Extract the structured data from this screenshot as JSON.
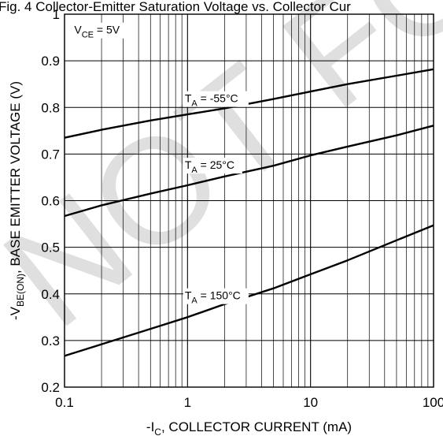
{
  "page": {
    "partial_title": "Fig. 4 Collector-Emitter Saturation Voltage vs. Collector Cur",
    "watermark": "NOT FOR"
  },
  "chart_data": {
    "type": "line",
    "title": "",
    "xlabel": {
      "prefix": "-I",
      "sub": "C",
      "rest": ", COLLECTOR CURRENT (mA)"
    },
    "ylabel": {
      "prefix": "-V",
      "sub": "BE(ON)",
      "rest": ", BASE EMITTER VOLTAGE (V)"
    },
    "x_scale": "log",
    "xlim": [
      0.1,
      100
    ],
    "ylim": [
      0.2,
      1.0
    ],
    "x_ticks": [
      {
        "value": 0.1,
        "label": "0.1"
      },
      {
        "value": 1,
        "label": "1"
      },
      {
        "value": 10,
        "label": "10"
      },
      {
        "value": 100,
        "label": "100"
      }
    ],
    "y_ticks": [
      {
        "value": 0.2,
        "label": "0.2"
      },
      {
        "value": 0.3,
        "label": "0.3"
      },
      {
        "value": 0.4,
        "label": "0.4"
      },
      {
        "value": 0.5,
        "label": "0.5"
      },
      {
        "value": 0.6,
        "label": "0.6"
      },
      {
        "value": 0.7,
        "label": "0.7"
      },
      {
        "value": 0.8,
        "label": "0.8"
      },
      {
        "value": 0.9,
        "label": "0.9"
      },
      {
        "value": 1.0,
        "label": "1"
      }
    ],
    "grid": true,
    "condition": {
      "main": "V",
      "sub": "CE",
      "rest": " = 5V",
      "x": 0.12,
      "y": 0.965
    },
    "series": [
      {
        "name": {
          "main": "T",
          "sub": "A",
          "rest": " = -55°C"
        },
        "label_at": {
          "x": 0.95,
          "y": 0.818
        },
        "x": [
          0.1,
          0.2,
          0.5,
          1,
          2,
          5,
          10,
          20,
          50,
          100
        ],
        "y": [
          0.735,
          0.752,
          0.772,
          0.785,
          0.798,
          0.818,
          0.834,
          0.85,
          0.868,
          0.882
        ]
      },
      {
        "name": {
          "main": "T",
          "sub": "A",
          "rest": " = 25°C"
        },
        "label_at": {
          "x": 0.95,
          "y": 0.675
        },
        "x": [
          0.1,
          0.2,
          0.5,
          1,
          2,
          5,
          10,
          20,
          50,
          100
        ],
        "y": [
          0.567,
          0.59,
          0.615,
          0.633,
          0.652,
          0.675,
          0.697,
          0.716,
          0.74,
          0.761
        ]
      },
      {
        "name": {
          "main": "T",
          "sub": "A",
          "rest": " = 150°C"
        },
        "label_at": {
          "x": 0.95,
          "y": 0.395
        },
        "x": [
          0.1,
          0.2,
          0.5,
          1,
          2,
          5,
          10,
          20,
          50,
          100
        ],
        "y": [
          0.267,
          0.292,
          0.325,
          0.35,
          0.378,
          0.412,
          0.442,
          0.472,
          0.515,
          0.547
        ]
      }
    ]
  }
}
